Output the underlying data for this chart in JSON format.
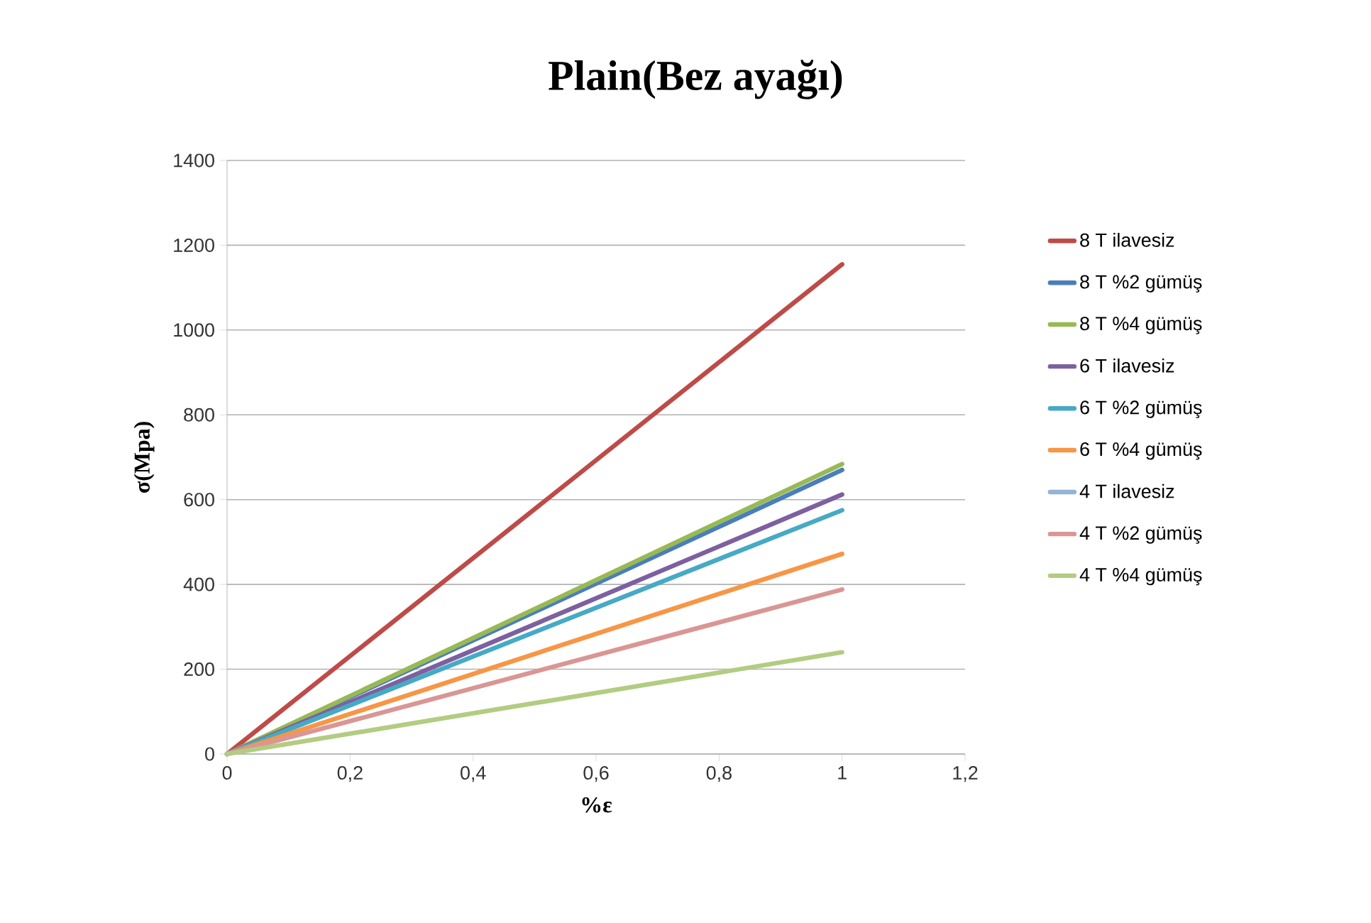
{
  "chart_data": {
    "type": "line",
    "title": "Plain(Bez ayağı)",
    "xlabel": "%ε",
    "ylabel": "σ(Mpa)",
    "x": [
      0,
      1
    ],
    "series": [
      {
        "name": "8 T ilavesiz",
        "color": "#be4b48",
        "values": [
          0,
          1155
        ]
      },
      {
        "name": "8 T %2 gümüş",
        "color": "#4a7ebb",
        "values": [
          0,
          670
        ]
      },
      {
        "name": "8 T %4 gümüş",
        "color": "#98b954",
        "values": [
          0,
          684
        ]
      },
      {
        "name": "6 T ilavesiz",
        "color": "#7d60a0",
        "values": [
          0,
          612
        ]
      },
      {
        "name": "6 T %2 gümüş",
        "color": "#46aac5",
        "values": [
          0,
          575
        ]
      },
      {
        "name": "6 T %4 gümüş",
        "color": "#f79646",
        "values": [
          0,
          472
        ]
      },
      {
        "name": "4 T ilavesiz",
        "color": "#95b3d7",
        "values": [
          null,
          null
        ]
      },
      {
        "name": "4 T %2 gümüş",
        "color": "#d99694",
        "values": [
          0,
          388
        ]
      },
      {
        "name": "4 T %4 gümüş",
        "color": "#b3cc82",
        "values": [
          0,
          240
        ]
      }
    ],
    "xlim": [
      0,
      1.2
    ],
    "ylim": [
      0,
      1400
    ],
    "xticks": [
      0,
      {
        "value": 0.2,
        "label": "0,2"
      },
      {
        "value": 0.4,
        "label": "0,4"
      },
      {
        "value": 0.6,
        "label": "0,6"
      },
      {
        "value": 0.8,
        "label": "0,8"
      },
      1,
      {
        "value": 1.2,
        "label": "1,2"
      }
    ],
    "yticks": [
      0,
      200,
      400,
      600,
      800,
      1000,
      1200,
      1400
    ],
    "grid": "y",
    "legend": "right"
  }
}
